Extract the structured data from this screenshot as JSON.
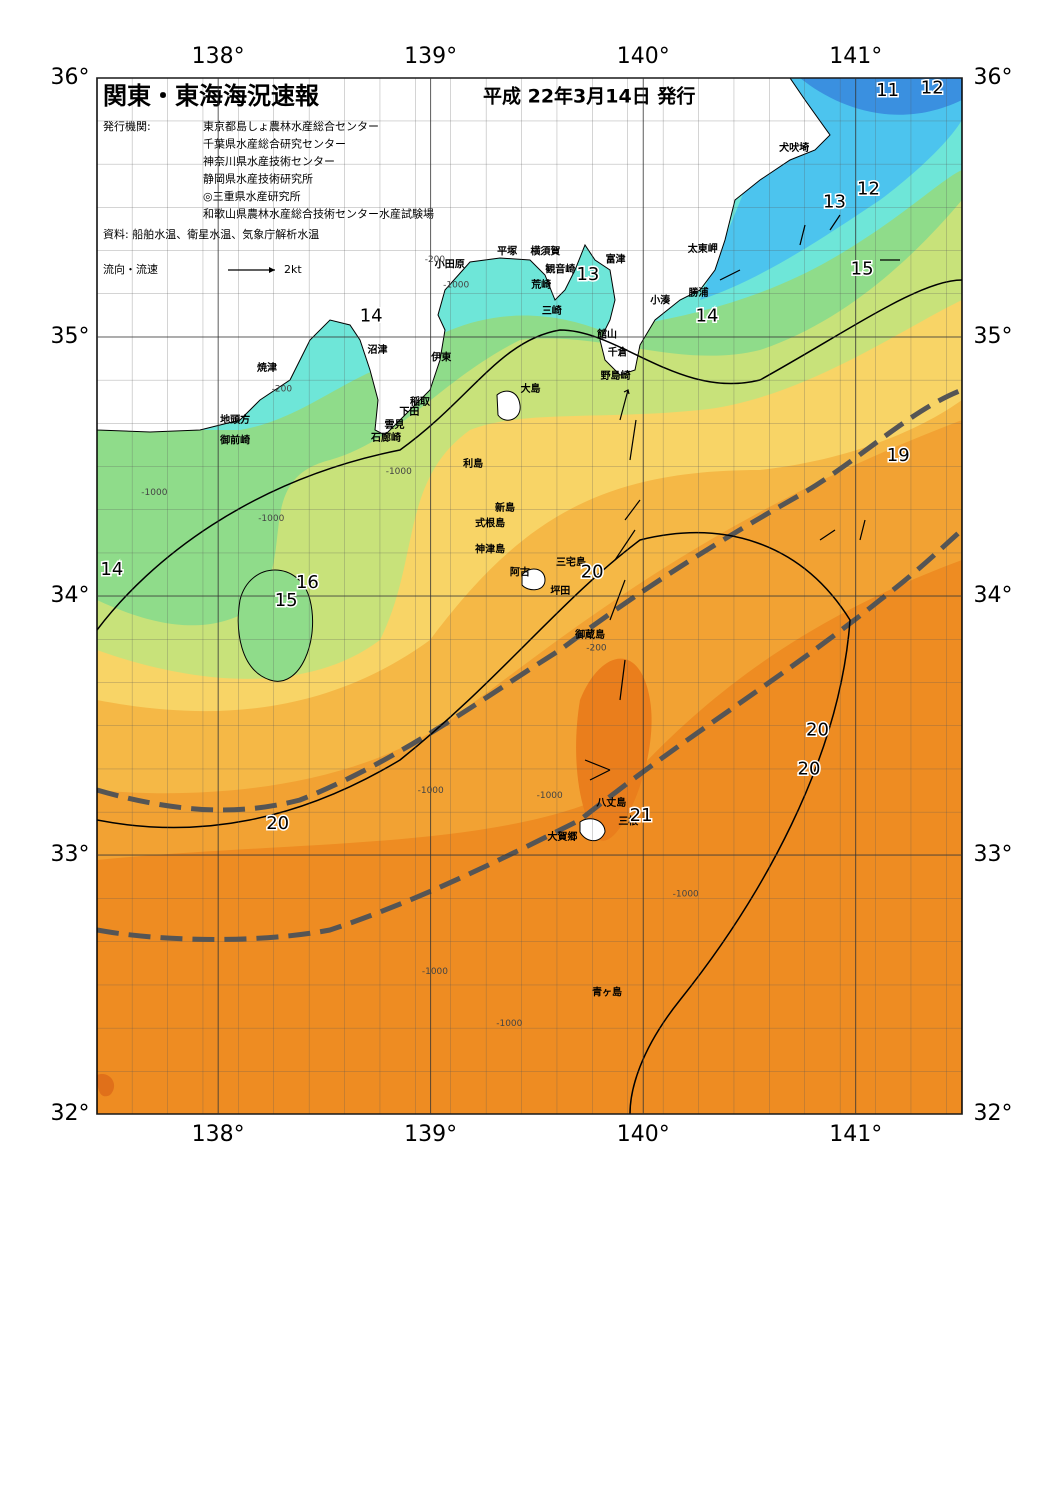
{
  "map": {
    "title": "関東・東海海況速報",
    "issue_date": "平成 22年3月14日 発行",
    "publisher_label": "発行機関:",
    "publishers": [
      "東京都島しょ農林水産総合センター",
      "千葉県水産総合研究センター",
      "神奈川県水産技術センター",
      "静岡県水産技術研究所",
      "◎三重県水産研究所",
      "和歌山県農林水産総合技術センター水産試験場"
    ],
    "source": "資料: 船舶水温、衛星水温、気象庁解析水温",
    "legend": {
      "label": "流向・流速",
      "scale": "2kt"
    },
    "lon_range": [
      137.43,
      141.5
    ],
    "lat_range": [
      32,
      36
    ],
    "lon_ticks": [
      {
        "value": 138,
        "label": "138°"
      },
      {
        "value": 139,
        "label": "139°"
      },
      {
        "value": 140,
        "label": "140°"
      },
      {
        "value": 141,
        "label": "141°"
      }
    ],
    "lat_ticks": [
      {
        "value": 36,
        "label": "36°"
      },
      {
        "value": 35,
        "label": "35°"
      },
      {
        "value": 34,
        "label": "34°"
      },
      {
        "value": 33,
        "label": "33°"
      },
      {
        "value": 32,
        "label": "32°"
      }
    ],
    "places": [
      {
        "name": "犬吠埼",
        "lon": 140.71,
        "lat": 35.73
      },
      {
        "name": "太東岬",
        "lon": 140.28,
        "lat": 35.34
      },
      {
        "name": "勝浦",
        "lon": 140.26,
        "lat": 35.17
      },
      {
        "name": "小湊",
        "lon": 140.08,
        "lat": 35.14
      },
      {
        "name": "館山",
        "lon": 139.83,
        "lat": 35.01
      },
      {
        "name": "千倉",
        "lon": 139.88,
        "lat": 34.94
      },
      {
        "name": "野島崎",
        "lon": 139.87,
        "lat": 34.85
      },
      {
        "name": "富津",
        "lon": 139.87,
        "lat": 35.3
      },
      {
        "name": "横須賀",
        "lon": 139.54,
        "lat": 35.33
      },
      {
        "name": "観音崎",
        "lon": 139.61,
        "lat": 35.26
      },
      {
        "name": "荒崎",
        "lon": 139.52,
        "lat": 35.2
      },
      {
        "name": "三崎",
        "lon": 139.57,
        "lat": 35.1
      },
      {
        "name": "平塚",
        "lon": 139.36,
        "lat": 35.33
      },
      {
        "name": "小田原",
        "lon": 139.09,
        "lat": 35.28
      },
      {
        "name": "沼津",
        "lon": 138.75,
        "lat": 34.95
      },
      {
        "name": "伊東",
        "lon": 139.05,
        "lat": 34.92
      },
      {
        "name": "焼津",
        "lon": 138.23,
        "lat": 34.88
      },
      {
        "name": "稲取",
        "lon": 138.95,
        "lat": 34.75
      },
      {
        "name": "下田",
        "lon": 138.9,
        "lat": 34.71
      },
      {
        "name": "雲見",
        "lon": 138.83,
        "lat": 34.66
      },
      {
        "name": "石廊崎",
        "lon": 138.79,
        "lat": 34.61
      },
      {
        "name": "地頭方",
        "lon": 138.08,
        "lat": 34.68
      },
      {
        "name": "御前崎",
        "lon": 138.08,
        "lat": 34.6
      },
      {
        "name": "大島",
        "lon": 139.47,
        "lat": 34.8
      },
      {
        "name": "利島",
        "lon": 139.2,
        "lat": 34.51
      },
      {
        "name": "新島",
        "lon": 139.35,
        "lat": 34.34
      },
      {
        "name": "式根島",
        "lon": 139.28,
        "lat": 34.28
      },
      {
        "name": "神津島",
        "lon": 139.28,
        "lat": 34.18
      },
      {
        "name": "三宅島",
        "lon": 139.66,
        "lat": 34.13
      },
      {
        "name": "阿古",
        "lon": 139.42,
        "lat": 34.09
      },
      {
        "name": "坪田",
        "lon": 139.61,
        "lat": 34.02
      },
      {
        "name": "御蔵島",
        "lon": 139.75,
        "lat": 33.85
      },
      {
        "name": "八丈島",
        "lon": 139.85,
        "lat": 33.2
      },
      {
        "name": "三根",
        "lon": 139.93,
        "lat": 33.13
      },
      {
        "name": "大賀郷",
        "lon": 139.62,
        "lat": 33.07
      },
      {
        "name": "青ヶ島",
        "lon": 139.83,
        "lat": 32.47
      }
    ],
    "isotherm_labels": [
      {
        "value": 11,
        "lon": 141.15,
        "lat": 35.95
      },
      {
        "value": 12,
        "lon": 141.36,
        "lat": 35.96
      },
      {
        "value": 12,
        "lon": 141.06,
        "lat": 35.57
      },
      {
        "value": 13,
        "lon": 140.9,
        "lat": 35.52
      },
      {
        "value": 13,
        "lon": 139.74,
        "lat": 35.24
      },
      {
        "value": 14,
        "lon": 140.3,
        "lat": 35.08
      },
      {
        "value": 14,
        "lon": 138.72,
        "lat": 35.08
      },
      {
        "value": 15,
        "lon": 141.03,
        "lat": 35.26
      },
      {
        "value": 14,
        "lon": 137.5,
        "lat": 34.1
      },
      {
        "value": 16,
        "lon": 138.42,
        "lat": 34.05
      },
      {
        "value": 15,
        "lon": 138.32,
        "lat": 33.98
      },
      {
        "value": 20,
        "lon": 139.76,
        "lat": 34.09
      },
      {
        "value": 19,
        "lon": 141.2,
        "lat": 34.54
      },
      {
        "value": 20,
        "lon": 140.82,
        "lat": 33.48
      },
      {
        "value": 20,
        "lon": 140.78,
        "lat": 33.33
      },
      {
        "value": 21,
        "lon": 139.99,
        "lat": 33.15
      },
      {
        "value": 20,
        "lon": 138.28,
        "lat": 33.12
      }
    ],
    "depth_labels": [
      {
        "value": -200,
        "lon": 139.02,
        "lat": 35.3
      },
      {
        "value": -1000,
        "lon": 139.12,
        "lat": 35.2
      },
      {
        "value": -200,
        "lon": 138.3,
        "lat": 34.8
      },
      {
        "value": -1000,
        "lon": 137.7,
        "lat": 34.4
      },
      {
        "value": -1000,
        "lon": 138.25,
        "lat": 34.3
      },
      {
        "value": -1000,
        "lon": 138.85,
        "lat": 34.48
      },
      {
        "value": -200,
        "lon": 139.78,
        "lat": 33.8
      },
      {
        "value": -1000,
        "lon": 139.0,
        "lat": 33.25
      },
      {
        "value": -1000,
        "lon": 139.56,
        "lat": 33.23
      },
      {
        "value": -1000,
        "lon": 140.2,
        "lat": 32.85
      },
      {
        "value": -1000,
        "lon": 139.02,
        "lat": 32.55
      },
      {
        "value": -1000,
        "lon": 139.37,
        "lat": 32.35
      }
    ]
  }
}
